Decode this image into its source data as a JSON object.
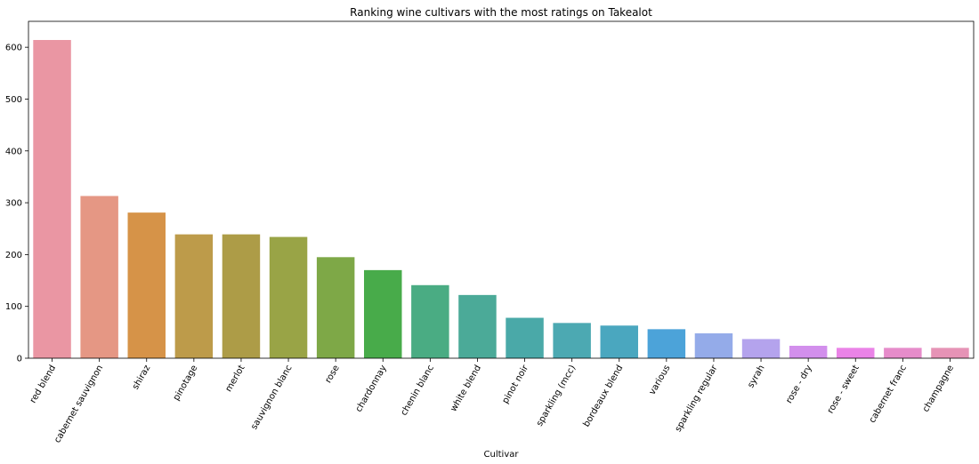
{
  "chart_data": {
    "type": "bar",
    "title": "Ranking wine cultivars with the most ratings on Takealot",
    "xlabel": "Cultivar",
    "ylabel": "",
    "ylim": [
      0,
      650
    ],
    "yticks": [
      0,
      100,
      200,
      300,
      400,
      500,
      600
    ],
    "grid": false,
    "categories": [
      "red blend",
      "cabernet sauvignon",
      "shiraz",
      "pinotage",
      "merlot",
      "sauvignon blanc",
      "rose",
      "chardonnay",
      "chenin blanc",
      "white blend",
      "pinot noir",
      "sparkling (mcc)",
      "bordeaux blend",
      "various",
      "sparkling regular",
      "syrah",
      "rose - dry",
      "rose - sweet",
      "cabernet franc",
      "champagne"
    ],
    "values": [
      614,
      313,
      281,
      239,
      239,
      234,
      195,
      170,
      141,
      122,
      78,
      68,
      63,
      56,
      48,
      37,
      24,
      20,
      20,
      20
    ],
    "colors": [
      "#ea96a3",
      "#e59784",
      "#d69348",
      "#bd9b4a",
      "#ad9c47",
      "#99a446",
      "#7ea847",
      "#48ab4a",
      "#4aac83",
      "#4baa98",
      "#4aa9a8",
      "#4ca9b2",
      "#4aa7bf",
      "#4ca3d9",
      "#94abe9",
      "#b4a3ed",
      "#d28fec",
      "#ea83e7",
      "#e68cca",
      "#e693b6"
    ]
  }
}
